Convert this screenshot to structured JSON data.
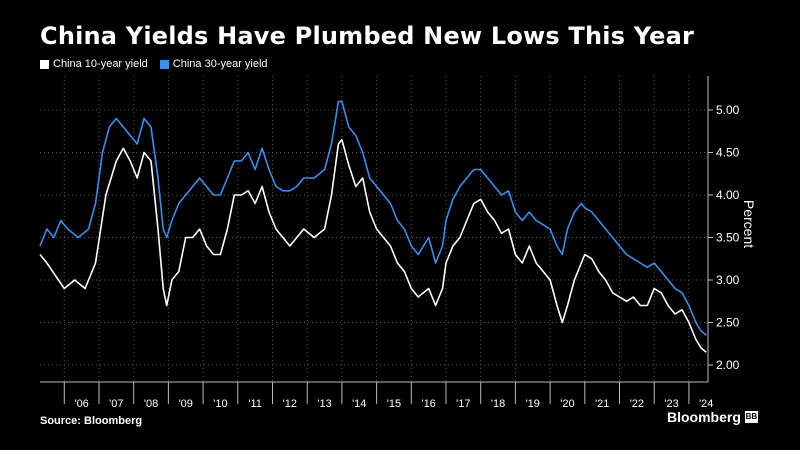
{
  "chart_data": {
    "type": "line",
    "title": "China Yields Have Plumbed New Lows This Year",
    "ylabel": "Percent",
    "ylim": [
      1.8,
      5.4
    ],
    "yticks": [
      2.0,
      2.5,
      3.0,
      3.5,
      4.0,
      4.5,
      5.0
    ],
    "ytick_labels": [
      "2.00",
      "2.50",
      "3.00",
      "3.50",
      "4.00",
      "4.50",
      "5.00"
    ],
    "xlim": [
      2005.3,
      2024.55
    ],
    "xticks": [
      2006,
      2007,
      2008,
      2009,
      2010,
      2011,
      2012,
      2013,
      2014,
      2015,
      2016,
      2017,
      2018,
      2019,
      2020,
      2021,
      2022,
      2023,
      2024
    ],
    "xtick_labels": [
      "'06",
      "'07",
      "'08",
      "'09",
      "'10",
      "'11",
      "'12",
      "'13",
      "'14",
      "'15",
      "'16",
      "'17",
      "'18",
      "'19",
      "'20",
      "'21",
      "'22",
      "'23",
      "'24"
    ],
    "grid": true,
    "legend_position": "top-left",
    "series": [
      {
        "name": "China 10-year yield",
        "color": "#ffffff",
        "x": [
          2005.3,
          2005.5,
          2005.75,
          2006.0,
          2006.3,
          2006.6,
          2006.9,
          2007.2,
          2007.5,
          2007.7,
          2007.9,
          2008.1,
          2008.3,
          2008.5,
          2008.7,
          2008.85,
          2008.95,
          2009.1,
          2009.3,
          2009.5,
          2009.7,
          2009.9,
          2010.1,
          2010.3,
          2010.5,
          2010.7,
          2010.9,
          2011.1,
          2011.3,
          2011.5,
          2011.7,
          2011.9,
          2012.1,
          2012.3,
          2012.5,
          2012.7,
          2012.9,
          2013.2,
          2013.5,
          2013.7,
          2013.9,
          2014.0,
          2014.2,
          2014.4,
          2014.6,
          2014.8,
          2015.0,
          2015.2,
          2015.4,
          2015.6,
          2015.8,
          2016.0,
          2016.2,
          2016.5,
          2016.7,
          2016.9,
          2017.0,
          2017.2,
          2017.4,
          2017.6,
          2017.8,
          2018.0,
          2018.2,
          2018.4,
          2018.6,
          2018.8,
          2019.0,
          2019.2,
          2019.4,
          2019.6,
          2019.8,
          2020.0,
          2020.2,
          2020.35,
          2020.5,
          2020.7,
          2020.9,
          2021.0,
          2021.2,
          2021.4,
          2021.6,
          2021.8,
          2022.0,
          2022.2,
          2022.4,
          2022.6,
          2022.8,
          2023.0,
          2023.2,
          2023.4,
          2023.6,
          2023.8,
          2024.0,
          2024.2,
          2024.35,
          2024.5
        ],
        "values": [
          3.3,
          3.2,
          3.05,
          2.9,
          3.0,
          2.9,
          3.2,
          4.0,
          4.4,
          4.55,
          4.4,
          4.2,
          4.5,
          4.4,
          3.6,
          2.9,
          2.7,
          3.0,
          3.1,
          3.5,
          3.5,
          3.6,
          3.4,
          3.3,
          3.3,
          3.6,
          4.0,
          4.0,
          4.05,
          3.9,
          4.1,
          3.8,
          3.6,
          3.5,
          3.4,
          3.5,
          3.6,
          3.5,
          3.6,
          4.0,
          4.6,
          4.65,
          4.35,
          4.1,
          4.2,
          3.8,
          3.6,
          3.5,
          3.4,
          3.2,
          3.1,
          2.9,
          2.8,
          2.9,
          2.7,
          2.9,
          3.2,
          3.4,
          3.5,
          3.7,
          3.9,
          3.95,
          3.8,
          3.7,
          3.55,
          3.6,
          3.3,
          3.2,
          3.4,
          3.2,
          3.1,
          3.0,
          2.7,
          2.5,
          2.7,
          3.0,
          3.2,
          3.3,
          3.25,
          3.1,
          3.0,
          2.85,
          2.8,
          2.75,
          2.8,
          2.7,
          2.7,
          2.9,
          2.85,
          2.7,
          2.6,
          2.65,
          2.5,
          2.3,
          2.2,
          2.15
        ]
      },
      {
        "name": "China 30-year yield",
        "color": "#3a8fea",
        "x": [
          2005.3,
          2005.5,
          2005.7,
          2005.9,
          2006.1,
          2006.4,
          2006.7,
          2006.9,
          2007.1,
          2007.3,
          2007.5,
          2007.7,
          2007.9,
          2008.1,
          2008.3,
          2008.5,
          2008.7,
          2008.85,
          2008.95,
          2009.1,
          2009.3,
          2009.5,
          2009.7,
          2009.9,
          2010.1,
          2010.3,
          2010.5,
          2010.7,
          2010.9,
          2011.1,
          2011.3,
          2011.5,
          2011.7,
          2011.9,
          2012.1,
          2012.3,
          2012.5,
          2012.7,
          2012.9,
          2013.2,
          2013.5,
          2013.7,
          2013.9,
          2014.0,
          2014.2,
          2014.4,
          2014.6,
          2014.8,
          2015.0,
          2015.2,
          2015.4,
          2015.6,
          2015.8,
          2016.0,
          2016.2,
          2016.5,
          2016.7,
          2016.9,
          2017.0,
          2017.2,
          2017.4,
          2017.6,
          2017.8,
          2018.0,
          2018.2,
          2018.4,
          2018.6,
          2018.8,
          2019.0,
          2019.2,
          2019.4,
          2019.6,
          2019.8,
          2020.0,
          2020.2,
          2020.35,
          2020.5,
          2020.7,
          2020.9,
          2021.0,
          2021.2,
          2021.4,
          2021.6,
          2021.8,
          2022.0,
          2022.2,
          2022.4,
          2022.6,
          2022.8,
          2023.0,
          2023.2,
          2023.4,
          2023.6,
          2023.8,
          2024.0,
          2024.2,
          2024.35,
          2024.5
        ],
        "values": [
          3.4,
          3.6,
          3.5,
          3.7,
          3.6,
          3.5,
          3.6,
          3.9,
          4.5,
          4.8,
          4.9,
          4.8,
          4.7,
          4.6,
          4.9,
          4.8,
          4.2,
          3.6,
          3.5,
          3.7,
          3.9,
          4.0,
          4.1,
          4.2,
          4.1,
          4.0,
          4.0,
          4.2,
          4.4,
          4.4,
          4.5,
          4.3,
          4.55,
          4.3,
          4.1,
          4.05,
          4.05,
          4.1,
          4.2,
          4.2,
          4.3,
          4.6,
          5.1,
          5.1,
          4.8,
          4.7,
          4.5,
          4.2,
          4.1,
          4.0,
          3.9,
          3.7,
          3.6,
          3.4,
          3.3,
          3.5,
          3.2,
          3.4,
          3.7,
          3.95,
          4.1,
          4.2,
          4.3,
          4.3,
          4.2,
          4.1,
          4.0,
          4.05,
          3.8,
          3.7,
          3.8,
          3.7,
          3.65,
          3.6,
          3.4,
          3.3,
          3.6,
          3.8,
          3.9,
          3.85,
          3.8,
          3.7,
          3.6,
          3.5,
          3.4,
          3.3,
          3.25,
          3.2,
          3.15,
          3.2,
          3.1,
          3.0,
          2.9,
          2.85,
          2.7,
          2.5,
          2.4,
          2.35
        ]
      }
    ]
  },
  "footer": {
    "source": "Source: Bloomberg",
    "brand": "Bloomberg",
    "brand_mark": "BB"
  }
}
